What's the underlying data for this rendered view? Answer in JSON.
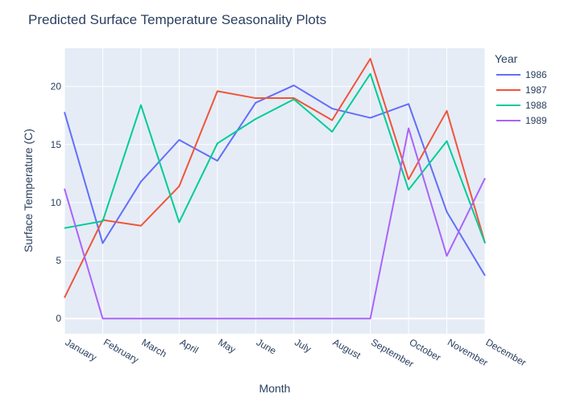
{
  "chart_data": {
    "type": "line",
    "title": "Predicted Surface Temperature Seasonality Plots",
    "xlabel": "Month",
    "ylabel": "Surface Temperature (C)",
    "legend_title": "Year",
    "legend_position": "right",
    "grid": true,
    "ylim": [
      -1.3,
      23.3
    ],
    "yticks": [
      0,
      5,
      10,
      15,
      20
    ],
    "categories": [
      "January",
      "February",
      "March",
      "April",
      "May",
      "June",
      "July",
      "August",
      "September",
      "October",
      "November",
      "December"
    ],
    "series": [
      {
        "name": "1986",
        "color": "#636efa",
        "values": [
          17.8,
          6.5,
          11.8,
          15.4,
          13.6,
          18.6,
          20.1,
          18.1,
          17.3,
          18.5,
          9.2,
          3.7
        ]
      },
      {
        "name": "1987",
        "color": "#ef553b",
        "values": [
          1.8,
          8.5,
          8.0,
          11.4,
          19.6,
          19.0,
          19.0,
          17.1,
          22.4,
          12.0,
          17.9,
          6.5
        ]
      },
      {
        "name": "1988",
        "color": "#00cc96",
        "values": [
          7.8,
          8.4,
          18.4,
          8.3,
          15.1,
          17.2,
          18.9,
          16.1,
          21.1,
          11.1,
          15.3,
          6.5
        ]
      },
      {
        "name": "1989",
        "color": "#ab63fa",
        "values": [
          11.2,
          0.0,
          0.0,
          0.0,
          0.0,
          0.0,
          0.0,
          0.0,
          0.0,
          16.4,
          5.4,
          12.1
        ]
      }
    ]
  }
}
